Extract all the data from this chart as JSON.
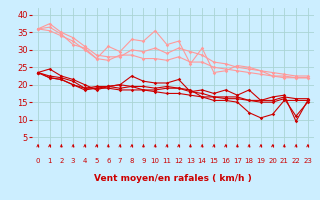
{
  "background_color": "#cceeff",
  "grid_color": "#aad4d4",
  "xlabel": "Vent moyen/en rafales ( km/h )",
  "xlabel_color": "#cc0000",
  "xlabel_fontsize": 6.5,
  "tick_color": "#cc0000",
  "ytick_fontsize": 6,
  "xtick_fontsize": 5,
  "ylim": [
    3,
    42
  ],
  "yticks": [
    5,
    10,
    15,
    20,
    25,
    30,
    35,
    40
  ],
  "xlim": [
    -0.5,
    23.5
  ],
  "xticks": [
    0,
    1,
    2,
    3,
    4,
    5,
    6,
    7,
    8,
    9,
    10,
    11,
    12,
    13,
    14,
    15,
    16,
    17,
    18,
    19,
    20,
    21,
    22,
    23
  ],
  "x": [
    0,
    1,
    2,
    3,
    4,
    5,
    6,
    7,
    8,
    9,
    10,
    11,
    12,
    13,
    14,
    15,
    16,
    17,
    18,
    19,
    20,
    21,
    22,
    23
  ],
  "lines_pink": [
    [
      36.0,
      36.5,
      34.5,
      31.5,
      30.5,
      27.5,
      31.0,
      29.5,
      33.0,
      32.5,
      35.5,
      31.5,
      32.5,
      26.0,
      30.5,
      23.5,
      24.0,
      25.5,
      25.0,
      24.0,
      22.5,
      22.5,
      22.0,
      22.0
    ],
    [
      36.0,
      37.5,
      35.0,
      33.5,
      31.0,
      28.5,
      28.0,
      28.0,
      30.0,
      29.5,
      30.5,
      29.0,
      30.5,
      29.5,
      28.5,
      26.5,
      26.0,
      25.0,
      24.5,
      24.0,
      23.5,
      23.0,
      22.5,
      22.5
    ],
    [
      36.0,
      35.5,
      34.0,
      32.5,
      30.0,
      27.5,
      27.0,
      28.5,
      28.5,
      27.5,
      27.5,
      27.0,
      28.0,
      26.5,
      26.5,
      25.0,
      24.5,
      24.0,
      23.5,
      23.0,
      22.5,
      22.0,
      22.0,
      22.0
    ]
  ],
  "lines_red": [
    [
      23.5,
      24.5,
      22.5,
      21.5,
      20.0,
      18.5,
      19.5,
      20.0,
      22.5,
      21.0,
      20.5,
      20.5,
      21.5,
      18.0,
      18.5,
      17.5,
      18.5,
      17.0,
      18.5,
      15.5,
      16.5,
      17.0,
      9.5,
      15.5
    ],
    [
      23.5,
      22.5,
      22.0,
      21.0,
      19.0,
      19.5,
      19.5,
      20.0,
      19.5,
      19.5,
      19.0,
      19.5,
      19.0,
      18.5,
      16.5,
      16.5,
      16.5,
      16.5,
      15.5,
      15.5,
      15.5,
      16.5,
      16.0,
      16.0
    ],
    [
      23.5,
      22.0,
      21.5,
      20.0,
      19.0,
      19.0,
      19.5,
      19.0,
      19.5,
      18.5,
      18.5,
      19.0,
      19.0,
      18.0,
      17.5,
      16.5,
      16.0,
      16.0,
      15.5,
      15.0,
      15.0,
      16.0,
      11.0,
      15.0
    ],
    [
      23.5,
      22.0,
      21.5,
      20.0,
      18.5,
      19.0,
      19.0,
      18.5,
      18.5,
      18.5,
      18.0,
      17.5,
      17.5,
      17.0,
      16.5,
      15.5,
      15.5,
      15.0,
      12.0,
      10.5,
      11.5,
      15.5,
      15.5,
      15.5
    ]
  ],
  "pink_color": "#ff9999",
  "red_color": "#cc0000",
  "marker_size": 1.8,
  "linewidth": 0.8,
  "arrow_color": "#cc0000",
  "figsize": [
    3.2,
    2.0
  ],
  "dpi": 100
}
